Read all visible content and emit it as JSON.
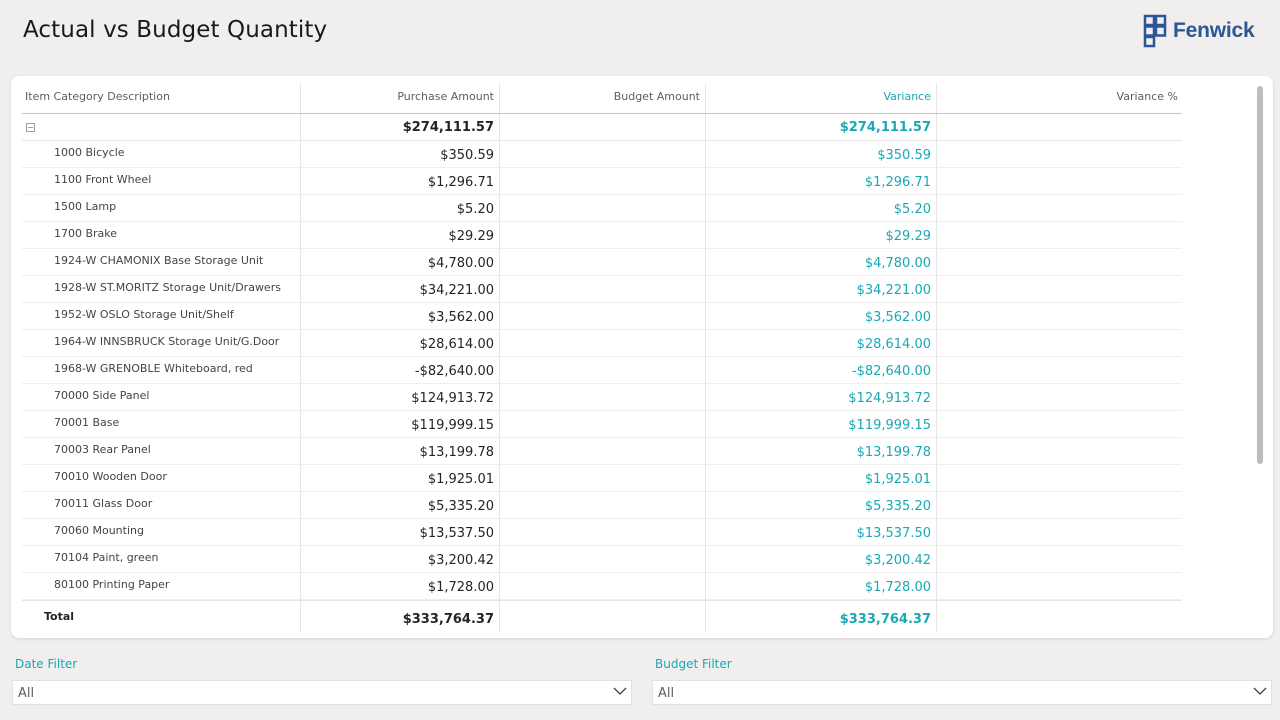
{
  "page": {
    "title": "Actual vs Budget Quantity"
  },
  "brand": {
    "name": "Fenwick",
    "color": "#2b5797"
  },
  "colors": {
    "accent": "#1aa8b5",
    "text": "#252423"
  },
  "table": {
    "columns": [
      "Item Category Description",
      "Purchase Amount",
      "Budget Amount",
      "Variance",
      "Variance %"
    ],
    "group_row": {
      "label": "",
      "purchase": "$274,111.57",
      "budget": "",
      "variance": "$274,111.57",
      "variance_pct": ""
    },
    "rows": [
      {
        "label": "1000 Bicycle",
        "purchase": "$350.59",
        "budget": "",
        "variance": "$350.59",
        "variance_pct": ""
      },
      {
        "label": "1100 Front Wheel",
        "purchase": "$1,296.71",
        "budget": "",
        "variance": "$1,296.71",
        "variance_pct": ""
      },
      {
        "label": "1500 Lamp",
        "purchase": "$5.20",
        "budget": "",
        "variance": "$5.20",
        "variance_pct": ""
      },
      {
        "label": "1700 Brake",
        "purchase": "$29.29",
        "budget": "",
        "variance": "$29.29",
        "variance_pct": ""
      },
      {
        "label": "1924-W CHAMONIX Base Storage Unit",
        "purchase": "$4,780.00",
        "budget": "",
        "variance": "$4,780.00",
        "variance_pct": ""
      },
      {
        "label": "1928-W ST.MORITZ Storage Unit/Drawers",
        "purchase": "$34,221.00",
        "budget": "",
        "variance": "$34,221.00",
        "variance_pct": ""
      },
      {
        "label": "1952-W OSLO Storage Unit/Shelf",
        "purchase": "$3,562.00",
        "budget": "",
        "variance": "$3,562.00",
        "variance_pct": ""
      },
      {
        "label": "1964-W INNSBRUCK Storage Unit/G.Door",
        "purchase": "$28,614.00",
        "budget": "",
        "variance": "$28,614.00",
        "variance_pct": ""
      },
      {
        "label": "1968-W GRENOBLE Whiteboard, red",
        "purchase": "-$82,640.00",
        "budget": "",
        "variance": "-$82,640.00",
        "variance_pct": ""
      },
      {
        "label": "70000 Side Panel",
        "purchase": "$124,913.72",
        "budget": "",
        "variance": "$124,913.72",
        "variance_pct": ""
      },
      {
        "label": "70001 Base",
        "purchase": "$119,999.15",
        "budget": "",
        "variance": "$119,999.15",
        "variance_pct": ""
      },
      {
        "label": "70003 Rear Panel",
        "purchase": "$13,199.78",
        "budget": "",
        "variance": "$13,199.78",
        "variance_pct": ""
      },
      {
        "label": "70010 Wooden Door",
        "purchase": "$1,925.01",
        "budget": "",
        "variance": "$1,925.01",
        "variance_pct": ""
      },
      {
        "label": "70011 Glass Door",
        "purchase": "$5,335.20",
        "budget": "",
        "variance": "$5,335.20",
        "variance_pct": ""
      },
      {
        "label": "70060 Mounting",
        "purchase": "$13,537.50",
        "budget": "",
        "variance": "$13,537.50",
        "variance_pct": ""
      },
      {
        "label": "70104 Paint, green",
        "purchase": "$3,200.42",
        "budget": "",
        "variance": "$3,200.42",
        "variance_pct": ""
      },
      {
        "label": "80100 Printing Paper",
        "purchase": "$1,728.00",
        "budget": "",
        "variance": "$1,728.00",
        "variance_pct": ""
      }
    ],
    "total": {
      "label": "Total",
      "purchase": "$333,764.37",
      "budget": "",
      "variance": "$333,764.37",
      "variance_pct": ""
    }
  },
  "filters": {
    "date": {
      "label": "Date Filter",
      "value": "All"
    },
    "budget": {
      "label": "Budget Filter",
      "value": "All"
    }
  }
}
